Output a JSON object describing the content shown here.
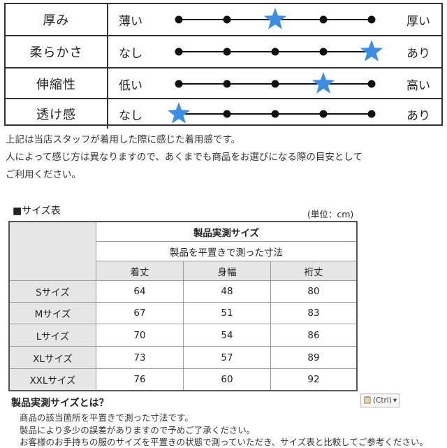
{
  "feel_scale": {
    "rows": [
      {
        "label": "厚み",
        "left": "薄い",
        "right": "厚い",
        "level": 3,
        "steps": 5
      },
      {
        "label": "柔らかさ",
        "left": "なし",
        "right": "あり",
        "level": 5,
        "steps": 5
      },
      {
        "label": "伸縮性",
        "left": "低い",
        "right": "高い",
        "level": 4,
        "steps": 5
      },
      {
        "label": "透け感",
        "left": "なし",
        "right": "あり",
        "level": 1,
        "steps": 5
      }
    ],
    "star_color": "#3a8ee6"
  },
  "notes": [
    "上記は当店スタッフが着用した際に感じた着用感です。",
    "人によって感じ方は異なりますので、あくまでも商品をお選びになる際の目安として",
    "ご利用ください。"
  ],
  "size_table": {
    "title": "■サイズ表",
    "unit": "(単位：cm)",
    "header_main": "製品実測サイズ",
    "header_sub": "製品を平置きで測った寸法",
    "columns": [
      "着丈",
      "身幅",
      "裄丈"
    ],
    "rows": [
      {
        "size": "Sサイズ",
        "values": [
          "64",
          "48",
          "80"
        ]
      },
      {
        "size": "Mサイズ",
        "values": [
          "67",
          "51",
          "83"
        ]
      },
      {
        "size": "Lサイズ",
        "values": [
          "70",
          "54",
          "86"
        ]
      },
      {
        "size": "XLサイズ",
        "values": [
          "73",
          "57",
          "89"
        ]
      },
      {
        "size": "XXLサイズ",
        "values": [
          "76",
          "60",
          "92"
        ]
      }
    ]
  },
  "footer": {
    "title": "製品実測サイズとは？",
    "lines": [
      "商品の該当箇所を平置きで測った寸法です。",
      "製品により多少の誤差がありますので予めご了承ください。",
      "お客様のお手持ちの服のサイズを平置きの状態で測っていただき、サイズ表と比較してご参考ください。"
    ],
    "paste_button": "(Ctrl)"
  }
}
